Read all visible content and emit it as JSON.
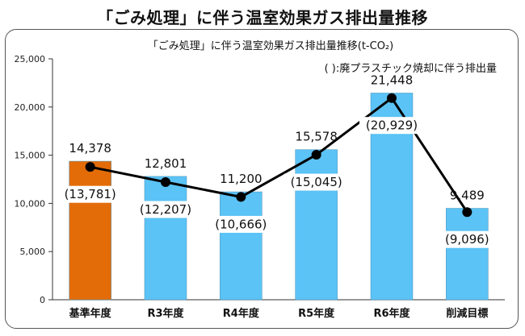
{
  "page_title": "「ごみ処理」に伴う温室効果ガス排出量推移",
  "chart_data": {
    "type": "bar",
    "title": "「ごみ処理」に伴う温室効果ガス排出量推移(t-CO₂)",
    "legend_note": "( ):廃プラスチック焼却に伴う排出量",
    "categories": [
      "基準年度",
      "R3年度",
      "R4年度",
      "R5年度",
      "R6年度",
      "削減目標"
    ],
    "series": [
      {
        "name": "排出量",
        "type": "bar",
        "values": [
          14378,
          12801,
          11200,
          15578,
          21448,
          9489
        ],
        "labels": [
          "14,378",
          "12,801",
          "11,200",
          "15,578",
          "21,448",
          "9,489"
        ],
        "colors": [
          "#E36C09",
          "#5BC3F5",
          "#5BC3F5",
          "#5BC3F5",
          "#5BC3F5",
          "#5BC3F5"
        ]
      },
      {
        "name": "廃プラスチック焼却に伴う排出量",
        "type": "line",
        "values": [
          13781,
          12207,
          10666,
          15045,
          20929,
          9096
        ],
        "labels": [
          "(13,781)",
          "(12,207)",
          "(10,666)",
          "(15,045)",
          "(20,929)",
          "(9,096)"
        ],
        "color": "#000000"
      }
    ],
    "ylim": [
      0,
      25000
    ],
    "yticks": [
      "0",
      "5,000",
      "10,000",
      "15,000",
      "20,000",
      "25,000"
    ],
    "xlabel": "",
    "ylabel": ""
  }
}
